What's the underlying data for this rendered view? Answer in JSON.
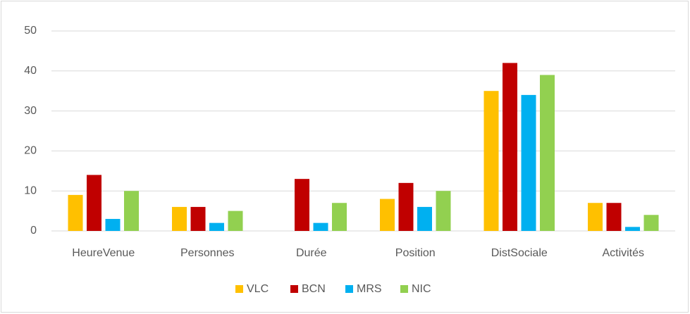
{
  "chart_data": {
    "type": "bar",
    "categories": [
      "HeureVenue",
      "Personnes",
      "Durée",
      "Position",
      "DistSociale",
      "Activités"
    ],
    "series": [
      {
        "name": "VLC",
        "color": "#FFC000",
        "values": [
          9,
          6,
          0,
          8,
          35,
          7
        ]
      },
      {
        "name": "BCN",
        "color": "#C00000",
        "values": [
          14,
          6,
          13,
          12,
          42,
          7
        ]
      },
      {
        "name": "MRS",
        "color": "#00B0F0",
        "values": [
          3,
          2,
          2,
          6,
          34,
          1
        ]
      },
      {
        "name": "NIC",
        "color": "#92D050",
        "values": [
          10,
          5,
          7,
          10,
          39,
          4
        ]
      }
    ],
    "ylim": [
      0,
      50
    ],
    "yticks": [
      0,
      10,
      20,
      30,
      40,
      50
    ],
    "grid": true,
    "legend": "bottom"
  }
}
